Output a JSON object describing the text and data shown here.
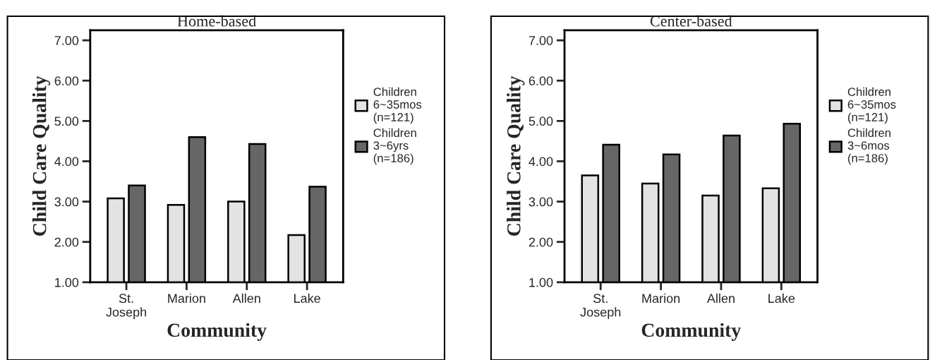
{
  "chart_data": [
    {
      "type": "bar",
      "title": "Home-based",
      "xlabel": "Community",
      "ylabel": "Child Care Quality",
      "categories": [
        "St.\nJoseph",
        "Marion",
        "Allen",
        "Lake"
      ],
      "series": [
        {
          "name": "Children\n6~35mos\n(n=121)",
          "color": "#e3e3e3",
          "values": [
            3.08,
            2.92,
            3.0,
            2.17
          ]
        },
        {
          "name": "Children\n3~6yrs\n(n=186)",
          "color": "#666666",
          "values": [
            3.4,
            4.6,
            4.43,
            3.37
          ]
        }
      ],
      "ylim": [
        1,
        7.25
      ],
      "yticks": [
        {
          "value": 1,
          "label": "1.00"
        },
        {
          "value": 2,
          "label": "2.00"
        },
        {
          "value": 3,
          "label": "3.00"
        },
        {
          "value": 4,
          "label": "4.00"
        },
        {
          "value": 5,
          "label": "5.00"
        },
        {
          "value": 6,
          "label": "6.00"
        },
        {
          "value": 7,
          "label": "7.00"
        }
      ],
      "legend": "right",
      "grid": false
    },
    {
      "type": "bar",
      "title": "Center-based",
      "xlabel": "Community",
      "ylabel": "Child Care Quality",
      "categories": [
        "St.\nJoseph",
        "Marion",
        "Allen",
        "Lake"
      ],
      "series": [
        {
          "name": "Children\n6~35mos\n(n=121)",
          "color": "#e3e3e3",
          "values": [
            3.65,
            3.45,
            3.15,
            3.33
          ]
        },
        {
          "name": "Children\n3~6mos\n(n=186)",
          "color": "#666666",
          "values": [
            4.41,
            4.17,
            4.64,
            4.93
          ]
        }
      ],
      "ylim": [
        1,
        7.25
      ],
      "yticks": [
        {
          "value": 1,
          "label": "1.00"
        },
        {
          "value": 2,
          "label": "2.00"
        },
        {
          "value": 3,
          "label": "3.00"
        },
        {
          "value": 4,
          "label": "4.00"
        },
        {
          "value": 5,
          "label": "5.00"
        },
        {
          "value": 6,
          "label": "6.00"
        },
        {
          "value": 7,
          "label": "7.00"
        }
      ],
      "legend": "right",
      "grid": false
    }
  ]
}
